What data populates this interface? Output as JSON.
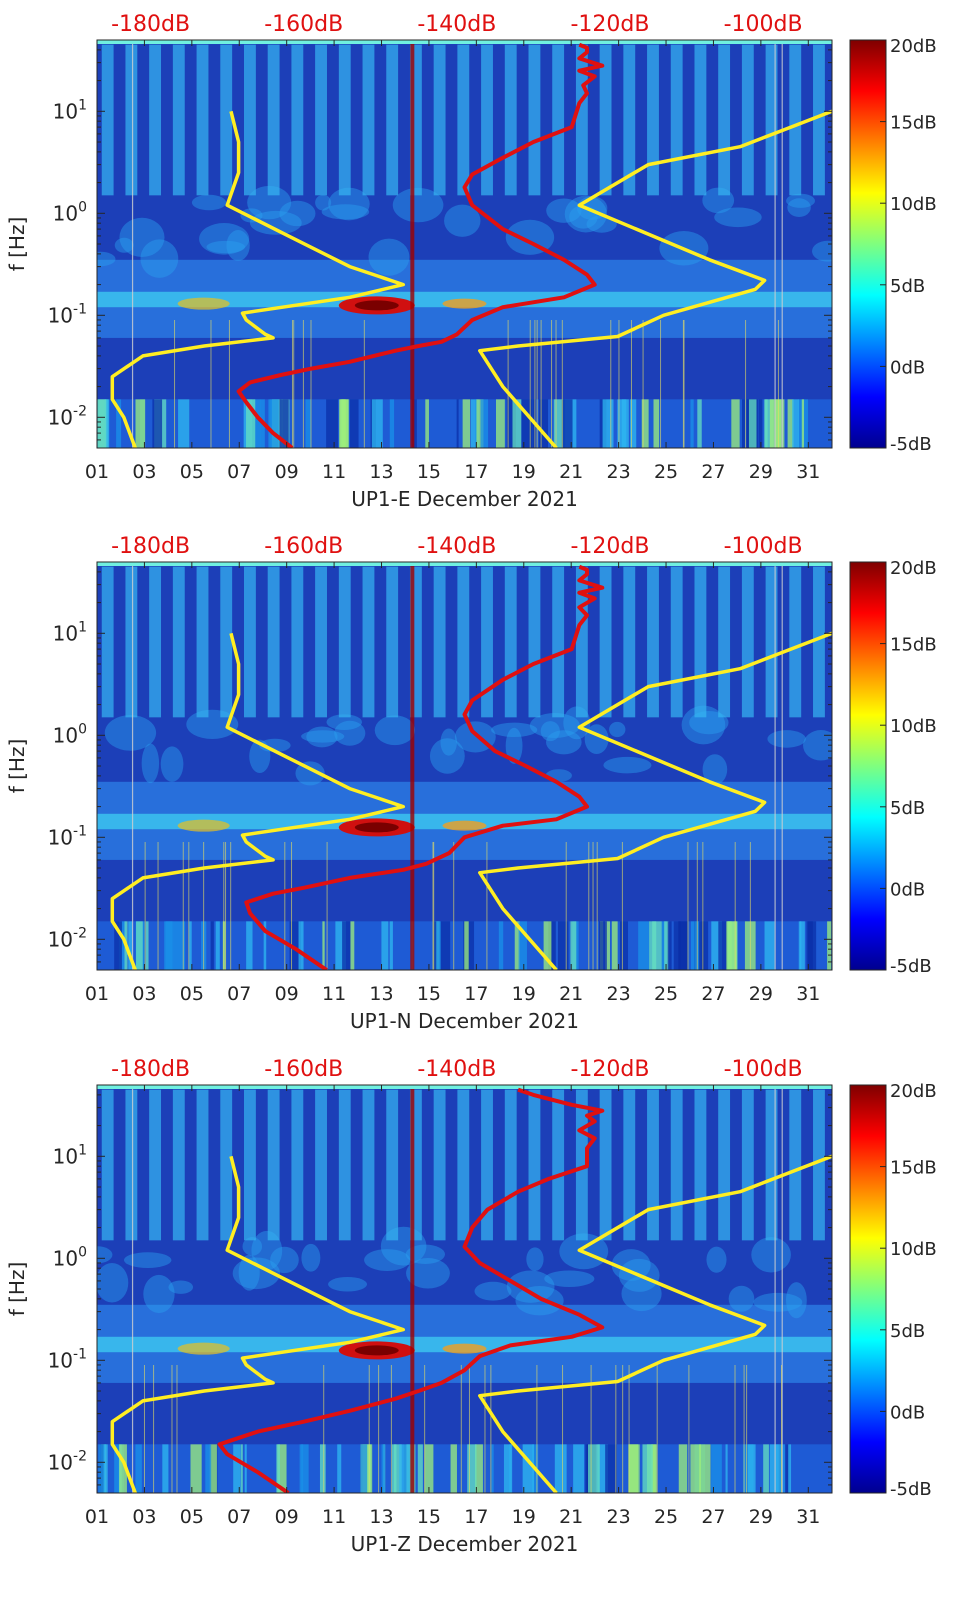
{
  "chart_data": [
    {
      "type": "heatmap",
      "title": "UP1-E",
      "xlabel": "UP1-E December 2021",
      "ylabel": "f [Hz]",
      "x_ticks": [
        "01",
        "03",
        "05",
        "07",
        "09",
        "11",
        "13",
        "15",
        "17",
        "19",
        "21",
        "23",
        "25",
        "27",
        "29",
        "31"
      ],
      "xlim_day": [
        1,
        32
      ],
      "y_ticks": [
        "10-2",
        "10-1",
        "100",
        "101"
      ],
      "ylim_hz": [
        0.005,
        50
      ],
      "top_axis_ticks": [
        "-180dB",
        "-160dB",
        "-140dB",
        "-120dB",
        "-100dB"
      ],
      "top_axis_range_db": [
        -187,
        -91
      ],
      "colorbar_ticks": [
        "20dB",
        "15dB",
        "10dB",
        "5dB",
        "0dB",
        "-5dB"
      ],
      "colorbar_range_db": [
        -5,
        20
      ],
      "colors": {
        "background": "#1c3fb8",
        "psd_curve": "#e01010",
        "noise_model": "#ffee22",
        "top_tick_text": "#e01010"
      },
      "curves": [
        {
          "name": "psd",
          "color": "#e01010",
          "points": [
            [
              -161.5,
              0.005
            ],
            [
              -164,
              0.007
            ],
            [
              -166,
              0.01
            ],
            [
              -167.5,
              0.014
            ],
            [
              -168.5,
              0.018
            ],
            [
              -167,
              0.022
            ],
            [
              -163,
              0.026
            ],
            [
              -159,
              0.03
            ],
            [
              -154,
              0.035
            ],
            [
              -148,
              0.045
            ],
            [
              -145,
              0.05
            ],
            [
              -142,
              0.055
            ],
            [
              -140,
              0.065
            ],
            [
              -138,
              0.09
            ],
            [
              -134,
              0.12
            ],
            [
              -126,
              0.15
            ],
            [
              -122,
              0.2
            ],
            [
              -123,
              0.25
            ],
            [
              -126,
              0.35
            ],
            [
              -130,
              0.5
            ],
            [
              -134,
              0.7
            ],
            [
              -138,
              1.2
            ],
            [
              -139,
              1.8
            ],
            [
              -138,
              2.4
            ],
            [
              -134,
              3.5
            ],
            [
              -130,
              5
            ],
            [
              -125,
              7
            ],
            [
              -124,
              12
            ],
            [
              -123,
              15
            ],
            [
              -123.5,
              18
            ],
            [
              -122,
              22
            ],
            [
              -124,
              25
            ],
            [
              -121,
              28
            ],
            [
              -124,
              33
            ],
            [
              -123,
              38
            ],
            [
              -123,
              42
            ],
            [
              -124,
              45
            ]
          ]
        },
        {
          "name": "nlnm",
          "color": "#ffee22",
          "points": [
            [
              -182,
              0.005
            ],
            [
              -183.5,
              0.01
            ],
            [
              -185,
              0.015
            ],
            [
              -185,
              0.025
            ],
            [
              -181,
              0.04
            ],
            [
              -173,
              0.05
            ],
            [
              -164,
              0.06
            ],
            [
              -165,
              0.065
            ],
            [
              -167.5,
              0.09
            ],
            [
              -168,
              0.105
            ],
            [
              -154,
              0.15
            ],
            [
              -147,
              0.2
            ],
            [
              -154,
              0.3
            ],
            [
              -162,
              0.6
            ],
            [
              -170,
              1.2
            ],
            [
              -168.5,
              2.5
            ],
            [
              -168.5,
              5
            ],
            [
              -169.5,
              10
            ]
          ]
        },
        {
          "name": "nhnm",
          "color": "#ffee22",
          "points": [
            [
              -127,
              0.005
            ],
            [
              -134,
              0.02
            ],
            [
              -137,
              0.045
            ],
            [
              -132,
              0.05
            ],
            [
              -119,
              0.062
            ],
            [
              -113,
              0.1
            ],
            [
              -101,
              0.18
            ],
            [
              -99.8,
              0.22
            ],
            [
              -107,
              0.35
            ],
            [
              -124,
              1.2
            ],
            [
              -115,
              3
            ],
            [
              -103,
              4.5
            ],
            [
              -91,
              10
            ]
          ]
        }
      ]
    },
    {
      "type": "heatmap",
      "title": "UP1-N",
      "xlabel": "UP1-N December 2021",
      "ylabel": "f [Hz]",
      "x_ticks": [
        "01",
        "03",
        "05",
        "07",
        "09",
        "11",
        "13",
        "15",
        "17",
        "19",
        "21",
        "23",
        "25",
        "27",
        "29",
        "31"
      ],
      "xlim_day": [
        1,
        32
      ],
      "y_ticks": [
        "10-2",
        "10-1",
        "100",
        "101"
      ],
      "ylim_hz": [
        0.005,
        50
      ],
      "top_axis_ticks": [
        "-180dB",
        "-160dB",
        "-140dB",
        "-120dB",
        "-100dB"
      ],
      "top_axis_range_db": [
        -187,
        -91
      ],
      "colorbar_ticks": [
        "20dB",
        "15dB",
        "10dB",
        "5dB",
        "0dB",
        "-5dB"
      ],
      "colorbar_range_db": [
        -5,
        20
      ],
      "colors": {
        "background": "#1c3fb8",
        "psd_curve": "#e01010",
        "noise_model": "#ffee22",
        "top_tick_text": "#e01010"
      },
      "curves": [
        {
          "name": "psd",
          "color": "#e01010",
          "points": [
            [
              -157,
              0.005
            ],
            [
              -161,
              0.008
            ],
            [
              -165,
              0.012
            ],
            [
              -167,
              0.018
            ],
            [
              -167.5,
              0.023
            ],
            [
              -164,
              0.028
            ],
            [
              -160,
              0.032
            ],
            [
              -154,
              0.04
            ],
            [
              -147,
              0.048
            ],
            [
              -144,
              0.055
            ],
            [
              -141,
              0.07
            ],
            [
              -139,
              0.1
            ],
            [
              -134,
              0.13
            ],
            [
              -127,
              0.15
            ],
            [
              -123,
              0.2
            ],
            [
              -124,
              0.25
            ],
            [
              -127,
              0.35
            ],
            [
              -131,
              0.5
            ],
            [
              -135,
              0.7
            ],
            [
              -138,
              1.1
            ],
            [
              -139,
              1.6
            ],
            [
              -138,
              2.2
            ],
            [
              -134,
              3.5
            ],
            [
              -130,
              5
            ],
            [
              -125,
              7
            ],
            [
              -124,
              12
            ],
            [
              -123,
              15
            ],
            [
              -124,
              18
            ],
            [
              -122,
              22
            ],
            [
              -124,
              25
            ],
            [
              -121,
              28
            ],
            [
              -124,
              33
            ],
            [
              -123,
              38
            ],
            [
              -123,
              42
            ],
            [
              -124,
              45
            ]
          ]
        },
        {
          "name": "nlnm",
          "color": "#ffee22",
          "points": [
            [
              -182,
              0.005
            ],
            [
              -183.5,
              0.01
            ],
            [
              -185,
              0.015
            ],
            [
              -185,
              0.025
            ],
            [
              -181,
              0.04
            ],
            [
              -173,
              0.05
            ],
            [
              -164,
              0.06
            ],
            [
              -165,
              0.065
            ],
            [
              -167.5,
              0.09
            ],
            [
              -168,
              0.105
            ],
            [
              -154,
              0.15
            ],
            [
              -147,
              0.2
            ],
            [
              -154,
              0.3
            ],
            [
              -162,
              0.6
            ],
            [
              -170,
              1.2
            ],
            [
              -168.5,
              2.5
            ],
            [
              -168.5,
              5
            ],
            [
              -169.5,
              10
            ]
          ]
        },
        {
          "name": "nhnm",
          "color": "#ffee22",
          "points": [
            [
              -127,
              0.005
            ],
            [
              -134,
              0.02
            ],
            [
              -137,
              0.045
            ],
            [
              -132,
              0.05
            ],
            [
              -119,
              0.062
            ],
            [
              -113,
              0.1
            ],
            [
              -101,
              0.18
            ],
            [
              -99.8,
              0.22
            ],
            [
              -107,
              0.35
            ],
            [
              -124,
              1.2
            ],
            [
              -115,
              3
            ],
            [
              -103,
              4.5
            ],
            [
              -91,
              10
            ]
          ]
        }
      ]
    },
    {
      "type": "heatmap",
      "title": "UP1-Z",
      "xlabel": "UP1-Z December 2021",
      "ylabel": "f [Hz]",
      "x_ticks": [
        "01",
        "03",
        "05",
        "07",
        "09",
        "11",
        "13",
        "15",
        "17",
        "19",
        "21",
        "23",
        "25",
        "27",
        "29",
        "31"
      ],
      "xlim_day": [
        1,
        32
      ],
      "y_ticks": [
        "10-2",
        "10-1",
        "100",
        "101"
      ],
      "ylim_hz": [
        0.005,
        50
      ],
      "top_axis_ticks": [
        "-180dB",
        "-160dB",
        "-140dB",
        "-120dB",
        "-100dB"
      ],
      "top_axis_range_db": [
        -187,
        -91
      ],
      "colorbar_ticks": [
        "20dB",
        "15dB",
        "10dB",
        "5dB",
        "0dB",
        "-5dB"
      ],
      "colorbar_range_db": [
        -5,
        20
      ],
      "colors": {
        "background": "#1c3fb8",
        "psd_curve": "#e01010",
        "noise_model": "#ffee22",
        "top_tick_text": "#e01010"
      },
      "curves": [
        {
          "name": "psd",
          "color": "#e01010",
          "points": [
            [
              -162,
              0.005
            ],
            [
              -166,
              0.008
            ],
            [
              -170,
              0.012
            ],
            [
              -171,
              0.015
            ],
            [
              -166,
              0.02
            ],
            [
              -160,
              0.025
            ],
            [
              -154,
              0.032
            ],
            [
              -148,
              0.042
            ],
            [
              -145,
              0.05
            ],
            [
              -142,
              0.06
            ],
            [
              -139,
              0.08
            ],
            [
              -137,
              0.11
            ],
            [
              -133,
              0.14
            ],
            [
              -125,
              0.17
            ],
            [
              -121,
              0.21
            ],
            [
              -124,
              0.28
            ],
            [
              -129,
              0.4
            ],
            [
              -133,
              0.6
            ],
            [
              -137,
              0.9
            ],
            [
              -139,
              1.3
            ],
            [
              -138,
              2
            ],
            [
              -136,
              3
            ],
            [
              -132,
              4.5
            ],
            [
              -128,
              6
            ],
            [
              -123,
              8
            ],
            [
              -123,
              12
            ],
            [
              -122,
              15
            ],
            [
              -124,
              18
            ],
            [
              -122,
              22
            ],
            [
              -123,
              25
            ],
            [
              -121,
              28
            ],
            [
              -125,
              32
            ],
            [
              -130,
              40
            ],
            [
              -132,
              45
            ]
          ]
        },
        {
          "name": "nlnm",
          "color": "#ffee22",
          "points": [
            [
              -182,
              0.005
            ],
            [
              -183.5,
              0.01
            ],
            [
              -185,
              0.015
            ],
            [
              -185,
              0.025
            ],
            [
              -181,
              0.04
            ],
            [
              -173,
              0.05
            ],
            [
              -164,
              0.06
            ],
            [
              -165,
              0.065
            ],
            [
              -167.5,
              0.09
            ],
            [
              -168,
              0.105
            ],
            [
              -154,
              0.15
            ],
            [
              -147,
              0.2
            ],
            [
              -154,
              0.3
            ],
            [
              -162,
              0.6
            ],
            [
              -170,
              1.2
            ],
            [
              -168.5,
              2.5
            ],
            [
              -168.5,
              5
            ],
            [
              -169.5,
              10
            ]
          ]
        },
        {
          "name": "nhnm",
          "color": "#ffee22",
          "points": [
            [
              -127,
              0.005
            ],
            [
              -134,
              0.02
            ],
            [
              -137,
              0.045
            ],
            [
              -132,
              0.05
            ],
            [
              -119,
              0.062
            ],
            [
              -113,
              0.1
            ],
            [
              -101,
              0.18
            ],
            [
              -99.8,
              0.22
            ],
            [
              -107,
              0.35
            ],
            [
              -124,
              1.2
            ],
            [
              -115,
              3
            ],
            [
              -103,
              4.5
            ],
            [
              -91,
              10
            ]
          ]
        }
      ]
    }
  ]
}
